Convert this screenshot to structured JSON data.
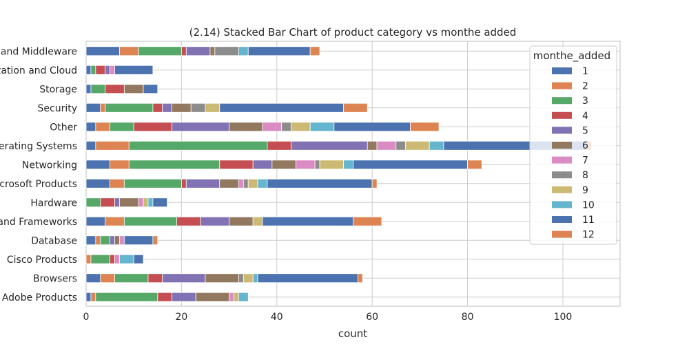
{
  "chart_data": {
    "type": "bar",
    "orientation": "horizontal",
    "stacked": true,
    "title": "(2.14) Stacked Bar Chart of  product category vs monthe added",
    "xlabel": "count",
    "ylabel": "",
    "xlim": [
      0,
      112
    ],
    "xticks": [
      0,
      20,
      40,
      60,
      80,
      100
    ],
    "grid": true,
    "legend_title": "monthe_added",
    "legend_position": "top-right",
    "categories": [
      "Adobe Products",
      "Browsers",
      "Cisco Products",
      "Database",
      "Development Tools and Frameworks",
      "Hardware",
      "Microsoft Products",
      "Networking",
      "Operating Systems",
      "Other",
      "Security",
      "Storage",
      "Virtualization and Cloud",
      "Web Servers and Middleware"
    ],
    "series": [
      {
        "name": "1",
        "color": "#4c72b0",
        "values": [
          1,
          3,
          0,
          2,
          4,
          0,
          5,
          5,
          2,
          2,
          3,
          1,
          1,
          7
        ]
      },
      {
        "name": "2",
        "color": "#dd8452",
        "values": [
          1,
          3,
          1,
          1,
          4,
          0,
          3,
          4,
          7,
          3,
          1,
          0,
          0,
          4
        ]
      },
      {
        "name": "3",
        "color": "#55a868",
        "values": [
          13,
          7,
          4,
          2,
          11,
          3,
          12,
          19,
          29,
          5,
          10,
          3,
          1,
          9
        ]
      },
      {
        "name": "4",
        "color": "#c44e52",
        "values": [
          3,
          3,
          1,
          0,
          5,
          3,
          1,
          7,
          5,
          8,
          2,
          4,
          2,
          1
        ]
      },
      {
        "name": "5",
        "color": "#8172b3",
        "values": [
          5,
          9,
          0,
          1,
          6,
          1,
          7,
          4,
          16,
          12,
          2,
          0,
          1,
          5
        ]
      },
      {
        "name": "6",
        "color": "#937860",
        "values": [
          7,
          7,
          0,
          1,
          5,
          4,
          4,
          5,
          2,
          7,
          4,
          4,
          0,
          1
        ]
      },
      {
        "name": "7",
        "color": "#da8bc3",
        "values": [
          1,
          0,
          1,
          1,
          0,
          1,
          1,
          4,
          4,
          4,
          0,
          0,
          1,
          0
        ]
      },
      {
        "name": "8",
        "color": "#8c8c8c",
        "values": [
          0,
          1,
          0,
          0,
          0,
          0,
          1,
          1,
          2,
          2,
          3,
          0,
          0,
          5
        ]
      },
      {
        "name": "9",
        "color": "#ccb974",
        "values": [
          1,
          2,
          0,
          0,
          2,
          1,
          2,
          5,
          5,
          4,
          3,
          0,
          0,
          0
        ]
      },
      {
        "name": "10",
        "color": "#64b5cd",
        "values": [
          2,
          1,
          3,
          0,
          0,
          1,
          2,
          2,
          3,
          5,
          0,
          0,
          0,
          2
        ]
      },
      {
        "name": "11",
        "color": "#4c72b0",
        "values": [
          0,
          21,
          2,
          6,
          19,
          3,
          22,
          24,
          30,
          16,
          26,
          3,
          8,
          13
        ]
      },
      {
        "name": "12",
        "color": "#dd8452",
        "values": [
          0,
          1,
          0,
          1,
          6,
          0,
          1,
          3,
          1,
          6,
          5,
          0,
          0,
          2
        ]
      }
    ]
  }
}
